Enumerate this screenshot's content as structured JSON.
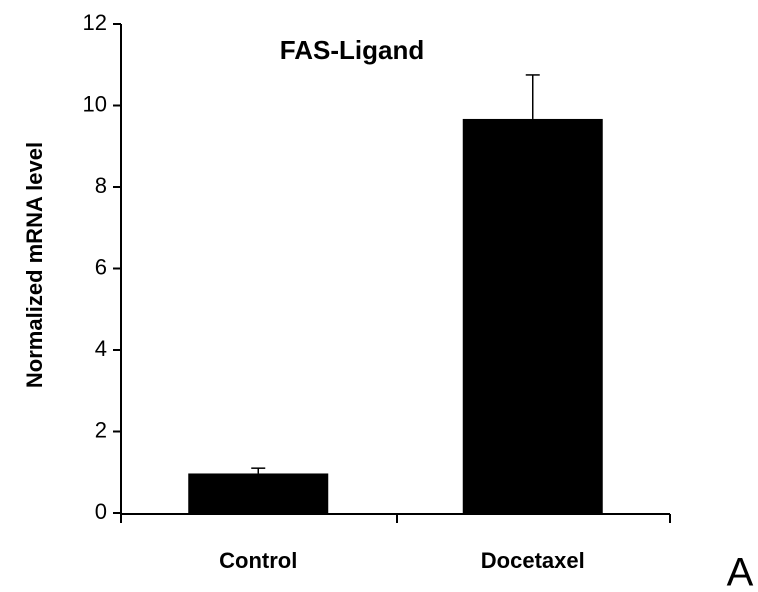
{
  "chart_data": {
    "type": "bar",
    "title": "FAS-Ligand",
    "y_label": "Normalized mRNA level",
    "categories": [
      "Control",
      "Docetaxel"
    ],
    "values": [
      0.97,
      9.67
    ],
    "errors": [
      0.13,
      1.08
    ],
    "color": "#000000",
    "ylim": [
      0,
      12
    ],
    "yticks": [
      0,
      2,
      4,
      6,
      8,
      10,
      12
    ],
    "grid": false,
    "panel_label": "A"
  }
}
